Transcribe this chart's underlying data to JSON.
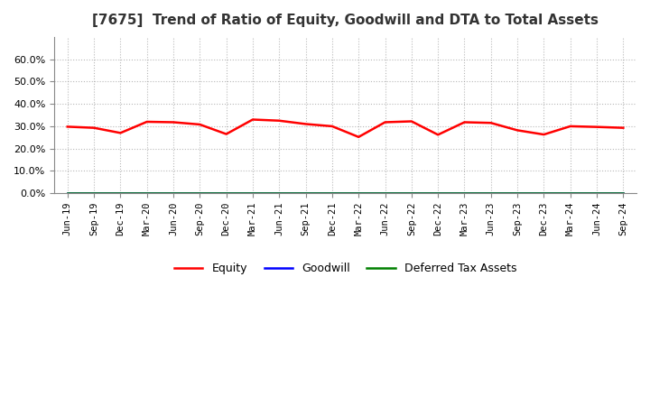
{
  "title": "[7675]  Trend of Ratio of Equity, Goodwill and DTA to Total Assets",
  "x_labels": [
    "Jun-19",
    "Sep-19",
    "Dec-19",
    "Mar-20",
    "Jun-20",
    "Sep-20",
    "Dec-20",
    "Mar-21",
    "Jun-21",
    "Sep-21",
    "Dec-21",
    "Mar-22",
    "Jun-22",
    "Sep-22",
    "Dec-22",
    "Mar-23",
    "Jun-23",
    "Sep-23",
    "Dec-23",
    "Mar-24",
    "Jun-24",
    "Sep-24"
  ],
  "equity": [
    0.298,
    0.293,
    0.27,
    0.32,
    0.318,
    0.308,
    0.265,
    0.33,
    0.325,
    0.31,
    0.3,
    0.252,
    0.318,
    0.322,
    0.262,
    0.318,
    0.315,
    0.282,
    0.263,
    0.3,
    0.297,
    0.293
  ],
  "goodwill": [
    0.0,
    0.0,
    0.0,
    0.0,
    0.0,
    0.0,
    0.0,
    0.0,
    0.0,
    0.0,
    0.0,
    0.0,
    0.0,
    0.0,
    0.0,
    0.0,
    0.0,
    0.0,
    0.0,
    0.0,
    0.0,
    0.0
  ],
  "dta": [
    0.0,
    0.0,
    0.0,
    0.0,
    0.0,
    0.0,
    0.0,
    0.0,
    0.0,
    0.0,
    0.0,
    0.0,
    0.0,
    0.0,
    0.0,
    0.0,
    0.0,
    0.0,
    0.0,
    0.0,
    0.0,
    0.0
  ],
  "equity_color": "#FF0000",
  "goodwill_color": "#0000FF",
  "dta_color": "#008000",
  "ylim": [
    0.0,
    0.7
  ],
  "yticks": [
    0.0,
    0.1,
    0.2,
    0.3,
    0.4,
    0.5,
    0.6
  ],
  "background_color": "#FFFFFF",
  "plot_bg_color": "#FFFFFF",
  "grid_color": "#999999",
  "title_fontsize": 11,
  "title_color": "#333333",
  "legend_labels": [
    "Equity",
    "Goodwill",
    "Deferred Tax Assets"
  ]
}
